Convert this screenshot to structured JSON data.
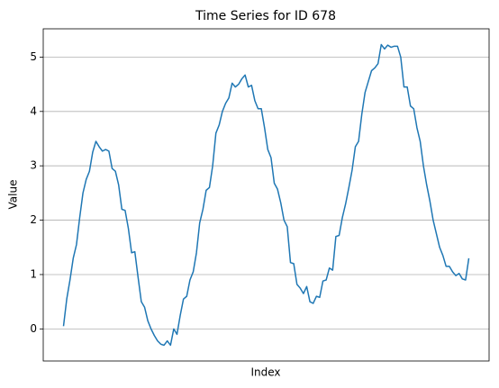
{
  "chart_data": {
    "type": "line",
    "title": "Time Series for ID 678",
    "xlabel": "Index",
    "ylabel": "Value",
    "x": [
      0,
      1,
      2,
      3,
      4,
      5,
      6,
      7,
      8,
      9,
      10,
      11,
      12,
      13,
      14,
      15,
      16,
      17,
      18,
      19,
      20,
      21,
      22,
      23,
      24,
      25,
      26,
      27,
      28,
      29,
      30,
      31,
      32,
      33,
      34,
      35,
      36,
      37,
      38,
      39,
      40,
      41,
      42,
      43,
      44,
      45,
      46,
      47,
      48,
      49,
      50,
      51,
      52,
      53,
      54,
      55,
      56,
      57,
      58,
      59,
      60,
      61,
      62,
      63,
      64,
      65,
      66,
      67,
      68,
      69,
      70,
      71,
      72,
      73,
      74,
      75,
      76,
      77,
      78,
      79,
      80,
      81,
      82,
      83,
      84,
      85,
      86,
      87,
      88,
      89,
      90,
      91,
      92,
      93,
      94,
      95,
      96,
      97,
      98,
      99,
      100,
      101,
      102,
      103,
      104,
      105,
      106,
      107,
      108,
      109,
      110,
      111,
      112,
      113,
      114,
      115,
      116,
      117,
      118,
      119,
      120,
      121,
      122,
      123,
      124,
      125
    ],
    "series": [
      {
        "name": "ID 678",
        "color": "#1f77b4",
        "values": [
          0.05,
          0.55,
          0.9,
          1.3,
          1.55,
          2.05,
          2.5,
          2.75,
          2.9,
          3.25,
          3.45,
          3.35,
          3.27,
          3.3,
          3.27,
          2.95,
          2.9,
          2.65,
          2.2,
          2.18,
          1.85,
          1.4,
          1.42,
          0.95,
          0.5,
          0.4,
          0.15,
          0.0,
          -0.12,
          -0.22,
          -0.28,
          -0.3,
          -0.22,
          -0.3,
          0.0,
          -0.1,
          0.25,
          0.55,
          0.6,
          0.9,
          1.05,
          1.4,
          1.95,
          2.2,
          2.55,
          2.6,
          3.0,
          3.6,
          3.75,
          4.0,
          4.15,
          4.25,
          4.52,
          4.45,
          4.5,
          4.6,
          4.67,
          4.45,
          4.48,
          4.2,
          4.05,
          4.05,
          3.7,
          3.3,
          3.15,
          2.68,
          2.57,
          2.32,
          2.0,
          1.88,
          1.22,
          1.2,
          0.82,
          0.75,
          0.65,
          0.78,
          0.5,
          0.47,
          0.6,
          0.58,
          0.88,
          0.9,
          1.12,
          1.08,
          1.7,
          1.72,
          2.05,
          2.3,
          2.6,
          2.92,
          3.35,
          3.45,
          3.95,
          4.35,
          4.55,
          4.75,
          4.8,
          4.88,
          5.23,
          5.15,
          5.22,
          5.18,
          5.2,
          5.2,
          5.0,
          4.45,
          4.45,
          4.1,
          4.05,
          3.7,
          3.45,
          3.0,
          2.65,
          2.35,
          2.0,
          1.75,
          1.5,
          1.35,
          1.15,
          1.15,
          1.05,
          0.98,
          1.02,
          0.92,
          0.9,
          1.3
        ]
      }
    ],
    "xlim": [
      -6.25,
      131.25
    ],
    "ylim": [
      -0.59,
      5.52
    ],
    "yticks": [
      0,
      1,
      2,
      3,
      4,
      5
    ],
    "grid": true
  }
}
